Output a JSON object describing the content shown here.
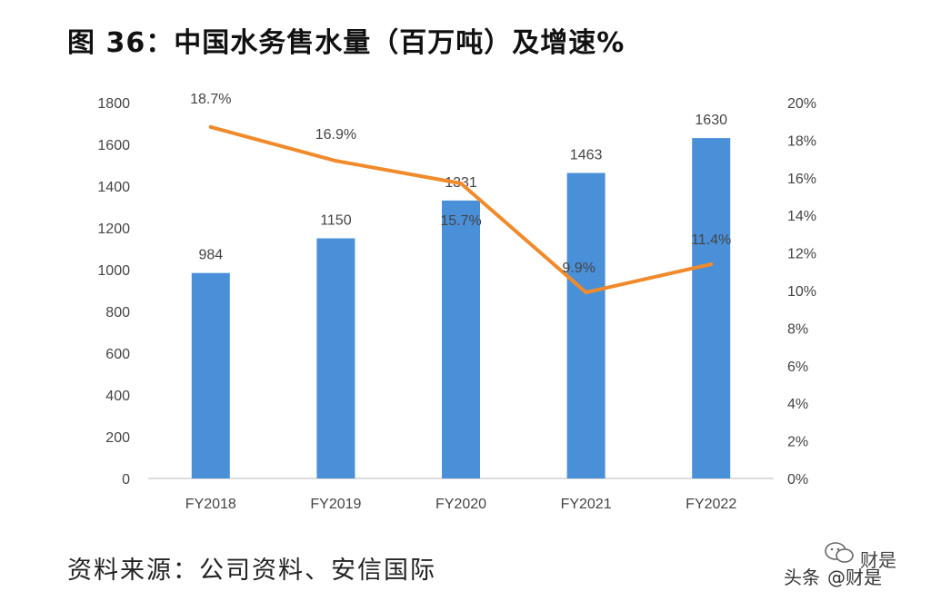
{
  "title": "图 36：中国水务售水量（百万吨）及增速%",
  "source": "资料来源：公司资料、安信国际",
  "watermark": {
    "platform": "头条",
    "handle": "@财是",
    "brand": "财是",
    "logo_icon": "wechat-bubble-icon"
  },
  "colors": {
    "bar": "#4a90d9",
    "line": "#f08a2a",
    "axis": "#d0d0d0",
    "text": "#444444"
  },
  "chart_data": {
    "type": "bar",
    "categories": [
      "FY2018",
      "FY2019",
      "FY2020",
      "FY2021",
      "FY2022"
    ],
    "series": [
      {
        "values": [
          984,
          1150,
          1331,
          1463,
          1630
        ],
        "axis": "left",
        "type": "bar"
      },
      {
        "values": [
          18.7,
          16.9,
          15.7,
          9.9,
          11.4
        ],
        "axis": "right",
        "type": "line"
      }
    ],
    "bar_labels": [
      "984",
      "1150",
      "1331",
      "1463",
      "1630"
    ],
    "line_labels": [
      "18.7%",
      "16.9%",
      "15.7%",
      "9.9%",
      "11.4%"
    ],
    "y_left": {
      "lim": [
        0,
        1800
      ],
      "ticks": [
        "0",
        "200",
        "400",
        "600",
        "800",
        "1000",
        "1200",
        "1400",
        "1600",
        "1800"
      ]
    },
    "y_right": {
      "lim": [
        0,
        20
      ],
      "ticks": [
        "0%",
        "2%",
        "4%",
        "6%",
        "8%",
        "10%",
        "12%",
        "14%",
        "16%",
        "18%",
        "20%"
      ]
    },
    "grid": false,
    "legend": "none"
  }
}
